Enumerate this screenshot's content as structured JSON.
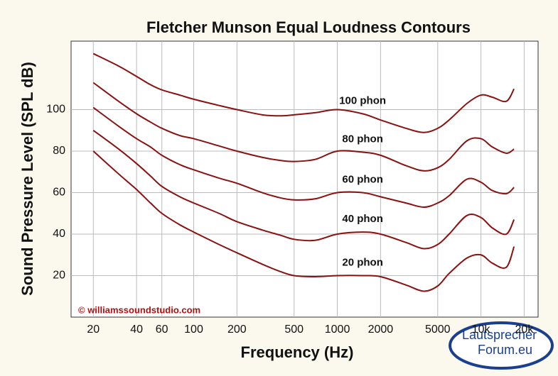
{
  "chart_data": {
    "type": "line",
    "title": "Fletcher Munson Equal Loudness Contours",
    "x_label": "Frequency (Hz)",
    "y_label": "Sound Pressure Level (SPL dB)",
    "annotation": "© williamssoundstudio.com",
    "watermark": [
      "Lautsprecher",
      "Forum.eu"
    ],
    "log_x": true,
    "grid": true,
    "x": [
      20,
      30,
      40,
      50,
      60,
      80,
      100,
      150,
      200,
      300,
      400,
      500,
      700,
      1000,
      1500,
      2000,
      3000,
      4000,
      5000,
      6000,
      8000,
      10000,
      12000,
      15000,
      17000
    ],
    "series": [
      {
        "name": "100 phon",
        "color": "#8b1111",
        "values": [
          127,
          121,
          116,
          112,
          109.5,
          107,
          105,
          102,
          100,
          97.5,
          97,
          97.5,
          98.5,
          100,
          98,
          95,
          91,
          89,
          91,
          95,
          103,
          107,
          106,
          104,
          110
        ]
      },
      {
        "name": "80 phon",
        "color": "#8b1111",
        "values": [
          113,
          104,
          98,
          94,
          91,
          87.5,
          86,
          82.5,
          80,
          77,
          75.5,
          75,
          76,
          80,
          79.5,
          78,
          73,
          70.5,
          72,
          76,
          85,
          86,
          82,
          79,
          81
        ]
      },
      {
        "name": "60 phon",
        "color": "#8b1111",
        "values": [
          101,
          92,
          86,
          82,
          78,
          73.5,
          71,
          67,
          64.5,
          60,
          57.5,
          56.5,
          57,
          60,
          60,
          58,
          55,
          53,
          55,
          58.5,
          66.5,
          65,
          61,
          59.5,
          62.5
        ]
      },
      {
        "name": "40 phon",
        "color": "#8b1111",
        "values": [
          90,
          81,
          74,
          68,
          63,
          58,
          55,
          50,
          46,
          42,
          39.5,
          37.5,
          37,
          40,
          41,
          40,
          36,
          33,
          35,
          40,
          49,
          48,
          43,
          40,
          47
        ]
      },
      {
        "name": "20 phon",
        "color": "#8b1111",
        "values": [
          80,
          69,
          61.5,
          55,
          50,
          44.5,
          41,
          35,
          31,
          25.5,
          22,
          20,
          19.5,
          20,
          20,
          19.5,
          15.5,
          12.5,
          15,
          21,
          28.5,
          30,
          26,
          24,
          34
        ]
      }
    ],
    "xlim": [
      14,
      25000
    ],
    "ylim": [
      0,
      133
    ],
    "xticks": [
      20,
      40,
      60,
      100,
      200,
      500,
      1000,
      2000,
      5000,
      {
        "value": 10000,
        "label": "10k"
      },
      {
        "value": 20000,
        "label": "20k"
      }
    ],
    "yticks": [
      20,
      40,
      60,
      80,
      100
    ]
  }
}
